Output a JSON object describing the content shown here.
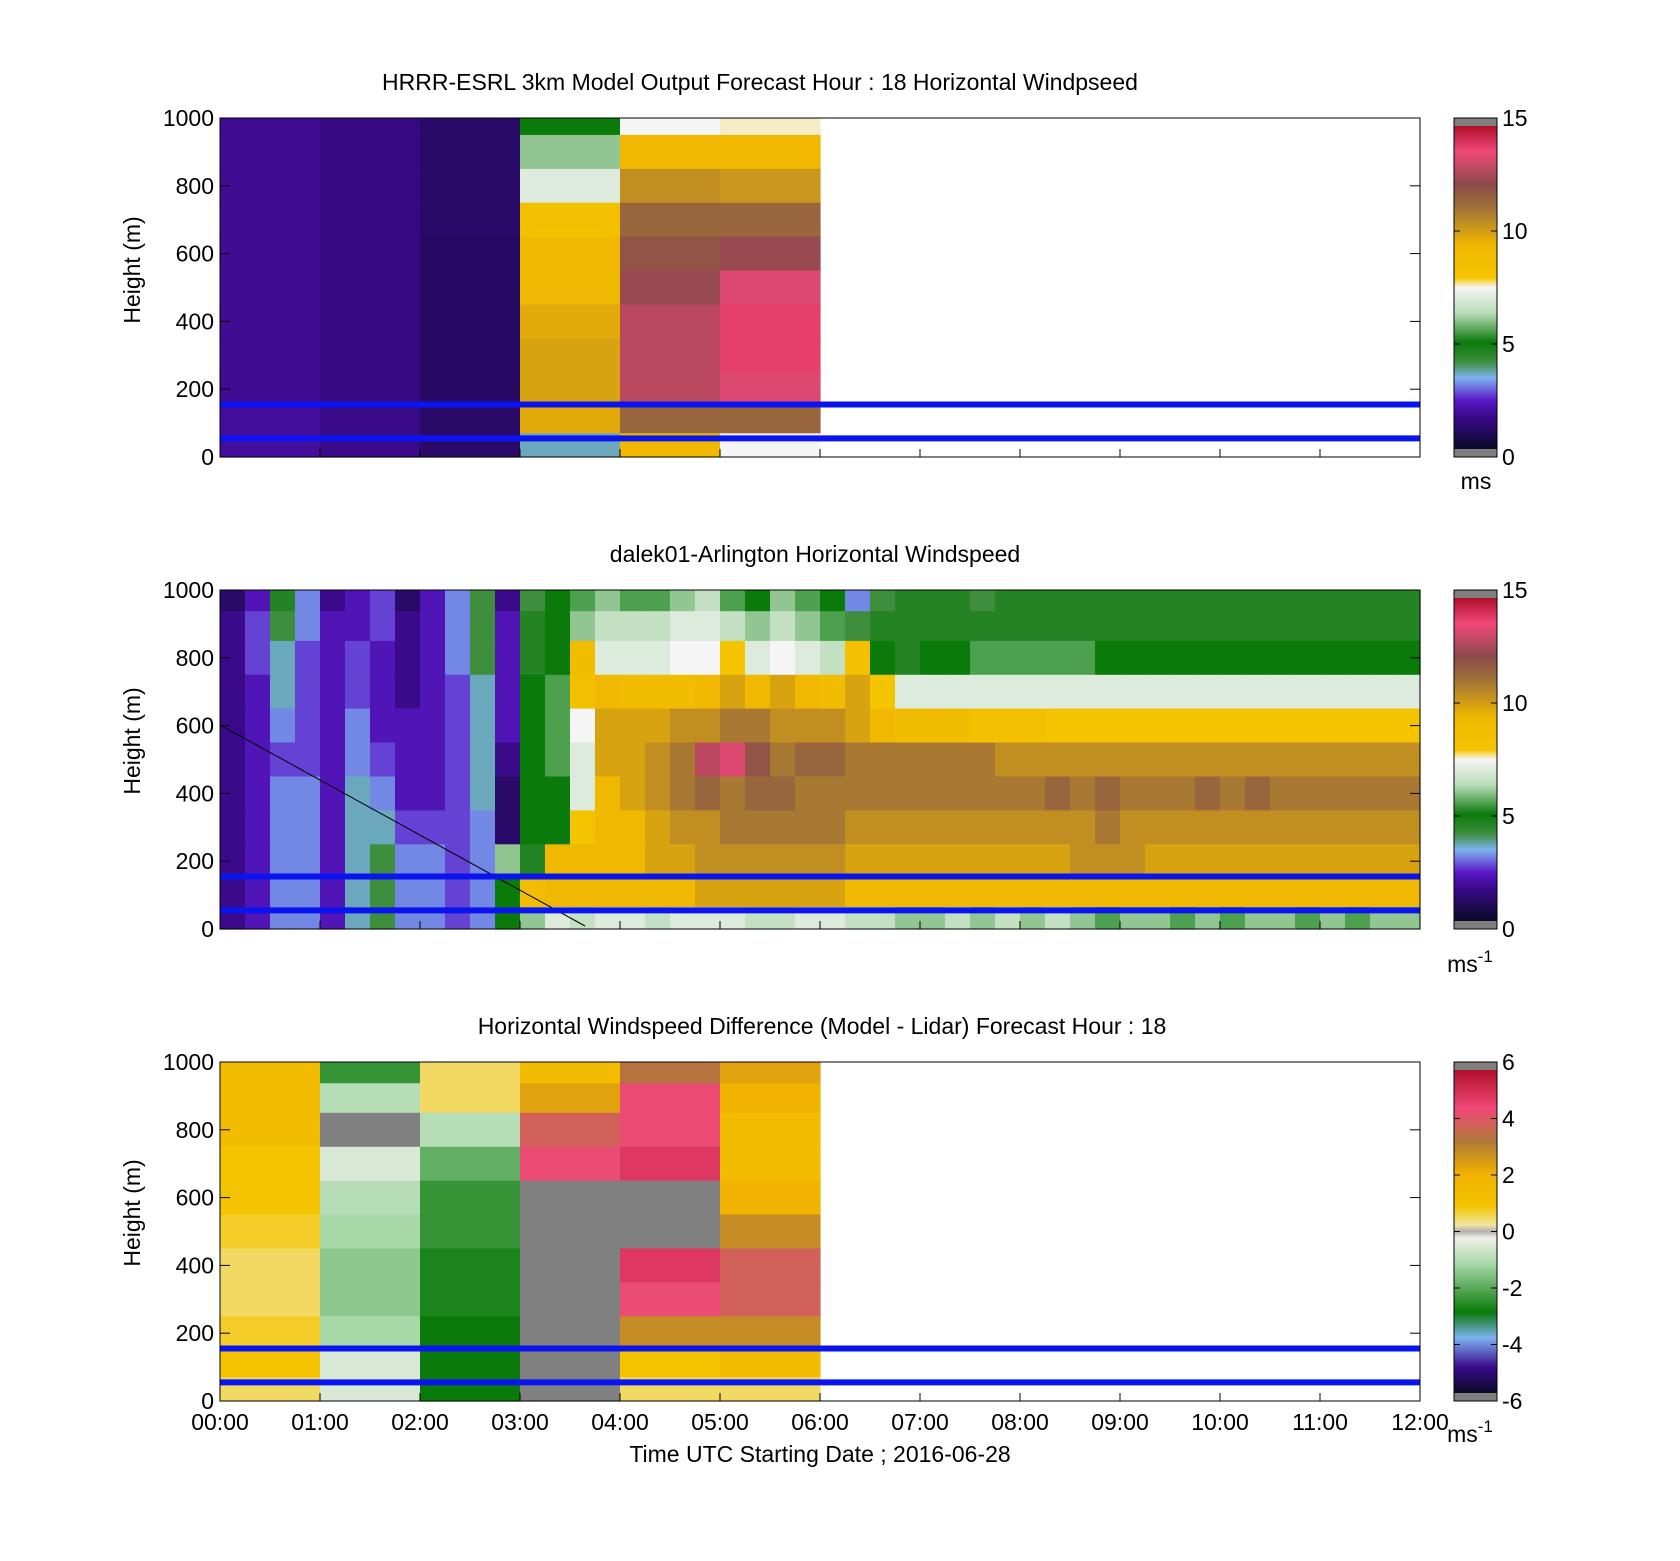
{
  "figure": {
    "xlabel": "Time UTC  Starting Date ; 2016-06-28",
    "x_tick_labels": [
      "00:00",
      "01:00",
      "02:00",
      "03:00",
      "04:00",
      "05:00",
      "06:00",
      "07:00",
      "08:00",
      "09:00",
      "10:00",
      "11:00",
      "12:00"
    ]
  },
  "colors": {
    "band_lines": "#0a14f0",
    "nodata": "#ffffff",
    "colorbar_end_caps": "#7f7f7f"
  },
  "chart_data": [
    {
      "type": "heatmap",
      "title": "HRRR-ESRL 3km Model Output   Forecast Hour : 18 Horizontal Windpseed",
      "ylabel": "Height (m)",
      "xlim": [
        "00:00",
        "12:00"
      ],
      "ylim": [
        0,
        1000
      ],
      "y_ticks": [
        0,
        200,
        400,
        600,
        800,
        1000
      ],
      "y_tick_labels": [
        "0",
        "200",
        "400",
        "600",
        "800",
        "1000"
      ],
      "grid": false,
      "band_lines_m": [
        155,
        55
      ],
      "colorbar": {
        "clim": [
          0,
          15
        ],
        "ticks": [
          0,
          5,
          10,
          15
        ],
        "tick_labels": [
          "0",
          "5",
          "10",
          "15"
        ],
        "unit": "ms",
        "unit_sup": ""
      },
      "hours": [
        "00:00",
        "01:00",
        "02:00",
        "03:00",
        "04:00",
        "05:00"
      ],
      "heights_m": [
        1000,
        900,
        800,
        700,
        600,
        500,
        400,
        300,
        200,
        100,
        40
      ],
      "values": [
        [
          1.6,
          1.4,
          1.0,
          5.0,
          7.5,
          7.6
        ],
        [
          1.6,
          1.4,
          1.0,
          6.0,
          9.5,
          9.5
        ],
        [
          1.6,
          1.4,
          1.0,
          7.0,
          10.5,
          10.3
        ],
        [
          1.6,
          1.4,
          1.0,
          8.5,
          11.5,
          11.5
        ],
        [
          1.6,
          1.4,
          0.9,
          9.5,
          12.0,
          12.5
        ],
        [
          1.6,
          1.4,
          0.9,
          9.5,
          12.5,
          13.5
        ],
        [
          1.6,
          1.4,
          0.9,
          9.8,
          13.0,
          14.0
        ],
        [
          1.6,
          1.4,
          0.9,
          10.0,
          13.0,
          14.0
        ],
        [
          1.6,
          1.4,
          0.9,
          10.0,
          13.0,
          13.5
        ],
        [
          1.7,
          1.5,
          1.0,
          9.8,
          11.5,
          11.5
        ],
        [
          1.7,
          1.5,
          1.0,
          3.5,
          9.5,
          7.5
        ]
      ]
    },
    {
      "type": "heatmap",
      "title": "dalek01-Arlington  Horizontal Windspeed",
      "ylabel": "Height (m)",
      "xlim": [
        "00:00",
        "12:00"
      ],
      "ylim": [
        0,
        1000
      ],
      "y_ticks": [
        0,
        200,
        400,
        600,
        800,
        1000
      ],
      "y_tick_labels": [
        "0",
        "200",
        "400",
        "600",
        "800",
        "1000"
      ],
      "grid": false,
      "band_lines_m": [
        155,
        55
      ],
      "colorbar": {
        "clim": [
          0,
          15
        ],
        "ticks": [
          0,
          5,
          10,
          15
        ],
        "tick_labels": [
          "0",
          "5",
          "10",
          "15"
        ],
        "unit": "ms",
        "unit_sup": "-1"
      },
      "time_step_min": 15,
      "heights_m": [
        975,
        900,
        800,
        700,
        600,
        500,
        400,
        300,
        200,
        100,
        30
      ],
      "values": [
        [
          1.0,
          2.0,
          4.5,
          3.0,
          1.5,
          2.0,
          2.5,
          1.0,
          2.0,
          3.0,
          4.0,
          1.5,
          4.0,
          5.0,
          5.5,
          6.0,
          5.5,
          5.5,
          6.0,
          6.5,
          5.5,
          5.0,
          6.0,
          5.5,
          5.0,
          3.0,
          4.0,
          4.5,
          4.5,
          4.5,
          4.0,
          4.5,
          4.5,
          4.5,
          4.5,
          4.5,
          4.5,
          4.5,
          4.5,
          4.5,
          4.5,
          4.5,
          4.5,
          4.5,
          4.5,
          4.5,
          4.5,
          4.5
        ],
        [
          1.5,
          2.5,
          4.0,
          3.0,
          2.0,
          2.0,
          2.5,
          1.5,
          2.0,
          3.0,
          4.0,
          2.0,
          4.5,
          5.0,
          6.0,
          6.5,
          6.5,
          6.5,
          7.0,
          7.0,
          6.5,
          6.0,
          6.5,
          6.0,
          5.5,
          4.0,
          4.5,
          4.5,
          4.5,
          4.5,
          4.5,
          4.5,
          4.5,
          4.5,
          4.5,
          4.5,
          4.5,
          4.5,
          4.5,
          4.5,
          4.5,
          4.5,
          4.5,
          4.5,
          4.5,
          4.5,
          4.5,
          4.5
        ],
        [
          1.5,
          2.5,
          3.5,
          2.5,
          2.0,
          2.5,
          2.0,
          1.5,
          2.0,
          3.0,
          4.0,
          2.0,
          4.5,
          5.0,
          9.0,
          7.0,
          7.0,
          7.0,
          7.5,
          7.5,
          8.0,
          7.0,
          7.5,
          7.0,
          6.5,
          8.5,
          5.0,
          4.5,
          5.0,
          5.0,
          5.5,
          5.5,
          5.5,
          5.5,
          5.5,
          5.0,
          5.0,
          5.0,
          5.0,
          5.0,
          5.0,
          5.0,
          5.0,
          5.0,
          5.0,
          5.0,
          5.0,
          5.0
        ],
        [
          1.5,
          2.0,
          3.5,
          2.5,
          2.0,
          2.5,
          2.0,
          1.5,
          2.0,
          2.5,
          3.5,
          2.0,
          5.0,
          5.5,
          8.5,
          9.5,
          9.0,
          9.0,
          9.0,
          9.5,
          10.0,
          9.5,
          10.0,
          9.5,
          9.0,
          10.0,
          8.0,
          7.0,
          7.0,
          7.0,
          7.0,
          7.0,
          7.0,
          7.0,
          7.0,
          7.0,
          7.0,
          7.0,
          7.0,
          7.0,
          7.0,
          7.0,
          7.0,
          7.0,
          7.0,
          7.0,
          7.0,
          7.0
        ],
        [
          1.5,
          2.0,
          3.0,
          2.5,
          2.0,
          3.0,
          2.0,
          2.0,
          2.0,
          2.5,
          3.5,
          2.0,
          5.0,
          5.5,
          7.5,
          10.0,
          10.0,
          10.0,
          10.5,
          10.5,
          11.0,
          11.0,
          10.5,
          10.5,
          10.5,
          10.0,
          9.5,
          9.0,
          9.0,
          9.0,
          8.5,
          8.5,
          8.5,
          8.0,
          8.0,
          8.0,
          8.0,
          8.0,
          8.0,
          8.0,
          8.0,
          8.0,
          8.0,
          8.0,
          8.0,
          8.0,
          8.0,
          8.0
        ],
        [
          1.5,
          2.0,
          2.5,
          2.5,
          2.0,
          3.0,
          2.5,
          2.0,
          2.0,
          2.5,
          3.5,
          1.5,
          5.0,
          5.5,
          7.0,
          10.0,
          10.0,
          10.5,
          11.0,
          13.0,
          13.5,
          12.0,
          11.0,
          11.5,
          11.5,
          11.0,
          11.0,
          11.0,
          11.0,
          11.0,
          11.0,
          10.5,
          10.5,
          10.5,
          10.5,
          10.5,
          10.5,
          10.5,
          10.5,
          10.5,
          10.5,
          10.5,
          10.5,
          10.5,
          10.5,
          10.5,
          10.5,
          10.5
        ],
        [
          1.5,
          2.0,
          3.0,
          3.0,
          2.0,
          3.5,
          3.0,
          2.0,
          2.0,
          2.5,
          3.5,
          1.0,
          5.0,
          5.0,
          7.0,
          9.5,
          10.0,
          10.5,
          11.0,
          11.5,
          11.0,
          11.5,
          11.5,
          11.0,
          11.0,
          11.0,
          11.0,
          11.0,
          11.0,
          11.0,
          11.0,
          11.0,
          11.0,
          11.5,
          11.0,
          11.5,
          11.0,
          11.0,
          11.0,
          11.5,
          11.0,
          11.5,
          11.0,
          11.0,
          11.0,
          11.0,
          11.0,
          11.0
        ],
        [
          1.5,
          2.0,
          3.0,
          3.0,
          2.0,
          3.5,
          3.5,
          2.5,
          2.5,
          2.5,
          3.0,
          1.0,
          5.0,
          5.0,
          8.0,
          9.5,
          9.5,
          10.0,
          10.5,
          10.5,
          11.0,
          11.0,
          11.0,
          11.0,
          11.0,
          10.5,
          10.5,
          10.5,
          10.5,
          10.5,
          10.5,
          10.5,
          10.5,
          10.5,
          10.5,
          11.0,
          10.5,
          10.5,
          10.5,
          10.5,
          10.5,
          10.5,
          10.5,
          10.5,
          10.5,
          10.5,
          10.5,
          10.5
        ],
        [
          1.5,
          2.0,
          3.0,
          3.0,
          2.0,
          3.5,
          4.0,
          3.0,
          3.0,
          2.5,
          3.0,
          6.0,
          4.5,
          9.5,
          9.5,
          9.5,
          9.5,
          10.0,
          10.0,
          10.5,
          10.5,
          10.5,
          10.5,
          10.5,
          10.5,
          10.0,
          10.0,
          10.0,
          10.0,
          10.0,
          10.0,
          10.0,
          10.0,
          10.0,
          10.5,
          10.5,
          10.5,
          10.0,
          10.0,
          10.0,
          10.0,
          10.0,
          10.0,
          10.0,
          10.0,
          10.0,
          10.0,
          10.0
        ],
        [
          1.5,
          2.0,
          3.0,
          3.0,
          2.0,
          3.5,
          4.0,
          3.0,
          3.0,
          2.5,
          3.0,
          5.0,
          9.0,
          9.5,
          9.5,
          9.5,
          9.5,
          9.5,
          9.5,
          10.0,
          10.0,
          10.0,
          10.0,
          10.0,
          10.0,
          9.5,
          9.5,
          9.5,
          9.5,
          9.5,
          9.5,
          9.5,
          9.5,
          9.5,
          9.5,
          9.5,
          9.5,
          9.5,
          9.5,
          9.5,
          9.5,
          9.5,
          9.5,
          9.5,
          9.5,
          9.5,
          9.5,
          9.5
        ],
        [
          1.5,
          2.0,
          3.0,
          3.0,
          2.0,
          3.5,
          4.0,
          3.0,
          3.0,
          2.5,
          3.0,
          5.0,
          6.0,
          7.0,
          6.5,
          7.0,
          7.0,
          6.5,
          7.0,
          7.0,
          7.0,
          6.5,
          6.5,
          7.0,
          7.0,
          6.5,
          6.5,
          6.0,
          6.0,
          6.5,
          6.0,
          6.5,
          6.0,
          6.5,
          6.0,
          5.5,
          6.0,
          6.0,
          5.5,
          6.0,
          5.5,
          6.0,
          6.0,
          5.5,
          6.0,
          5.5,
          6.0,
          6.0
        ]
      ]
    },
    {
      "type": "heatmap",
      "title": "Horizontal Windspeed Difference (Model - Lidar) Forecast Hour : 18",
      "ylabel": "Height (m)",
      "xlim": [
        "00:00",
        "12:00"
      ],
      "ylim": [
        0,
        1000
      ],
      "y_ticks": [
        0,
        200,
        400,
        600,
        800,
        1000
      ],
      "y_tick_labels": [
        "0",
        "200",
        "400",
        "600",
        "800",
        "1000"
      ],
      "grid": false,
      "band_lines_m": [
        155,
        55
      ],
      "colorbar": {
        "clim": [
          -6,
          6
        ],
        "ticks": [
          -6,
          -4,
          -2,
          0,
          2,
          4,
          6
        ],
        "tick_labels": [
          "-6",
          "-4",
          "-2",
          "0",
          "2",
          "4",
          "6"
        ],
        "unit": "ms",
        "unit_sup": "-1"
      },
      "hours": [
        "00:00",
        "01:00",
        "02:00",
        "03:00",
        "04:00",
        "05:00"
      ],
      "heights_m": [
        975,
        900,
        800,
        700,
        600,
        500,
        400,
        300,
        200,
        100,
        40
      ],
      "values": [
        [
          1.5,
          -2.5,
          0.5,
          1.5,
          3.5,
          2.5
        ],
        [
          1.5,
          -1.0,
          0.5,
          2.5,
          4.5,
          2.0
        ],
        [
          1.5,
          null,
          -1.0,
          4.0,
          4.5,
          1.5
        ],
        [
          1.0,
          -0.5,
          -2.0,
          4.5,
          5.0,
          1.5
        ],
        [
          1.0,
          -1.0,
          -2.5,
          null,
          null,
          2.0
        ],
        [
          0.8,
          -1.2,
          -2.5,
          null,
          null,
          3.0
        ],
        [
          0.5,
          -1.5,
          -2.8,
          null,
          5.0,
          4.0
        ],
        [
          0.5,
          -1.5,
          -2.8,
          null,
          4.5,
          4.0
        ],
        [
          0.8,
          -1.2,
          -3.0,
          null,
          3.0,
          3.0
        ],
        [
          1.0,
          -0.5,
          -3.0,
          null,
          1.0,
          1.5
        ],
        [
          0.5,
          -0.5,
          -3.0,
          null,
          0.5,
          0.5
        ]
      ]
    }
  ]
}
